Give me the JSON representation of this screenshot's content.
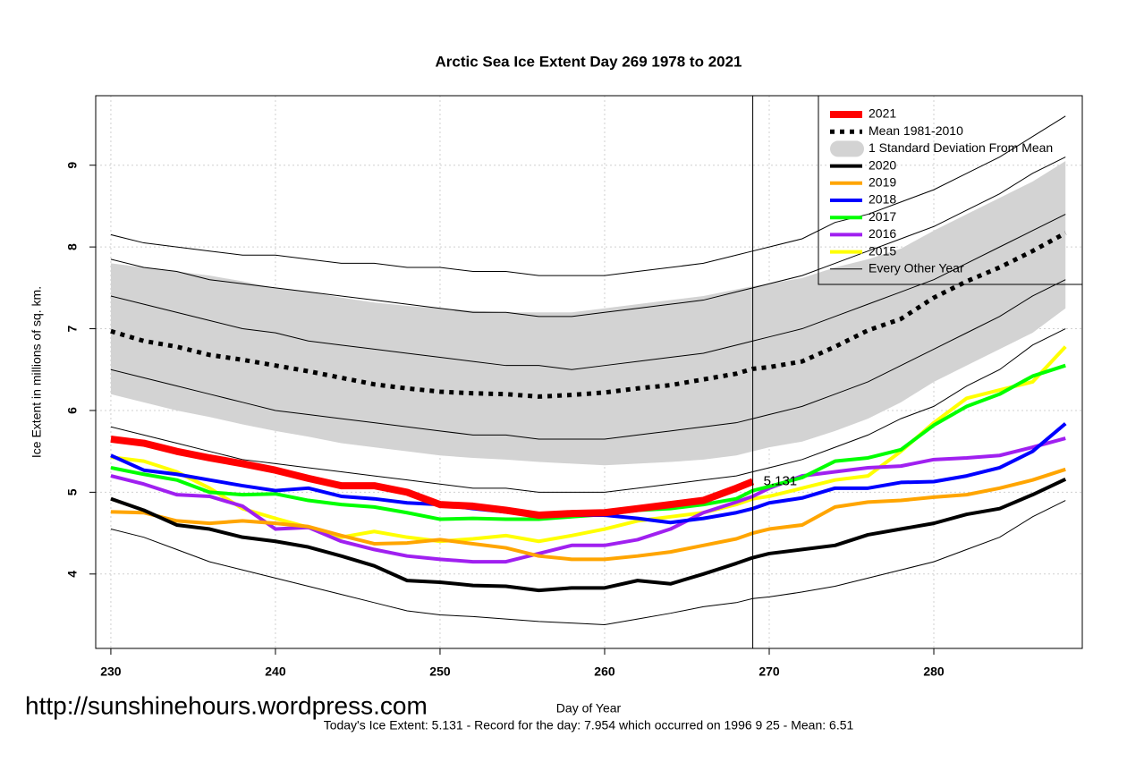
{
  "chart_data": {
    "type": "line",
    "title": "Arctic Sea Ice Extent Day 269 1978 to 2021",
    "x_label": "Day of Year",
    "y_label": "Ice Extent in millions of sq. km.",
    "footer": "Today's Ice Extent: 5.131  - Record for the day: 7.954 which occurred on 1996 9 25  - Mean: 6.51",
    "watermark": "http://sunshinehours.wordpress.com",
    "xlim": [
      229.08,
      289.02
    ],
    "ylim": [
      3.09,
      9.85
    ],
    "xticks": [
      230,
      240,
      250,
      260,
      270,
      280
    ],
    "yticks": [
      4,
      5,
      6,
      7,
      8,
      9
    ],
    "grid": true,
    "legend_position": "top-right",
    "marker_x": 269,
    "x": [
      230,
      232,
      234,
      236,
      238,
      240,
      242,
      244,
      246,
      248,
      250,
      252,
      254,
      256,
      258,
      260,
      262,
      264,
      266,
      268,
      269,
      270,
      272,
      274,
      276,
      278,
      280,
      282,
      284,
      286,
      288
    ],
    "band": {
      "name": "1 Standard Deviation From Mean",
      "color": "#d3d3d3",
      "upper": [
        7.8,
        7.75,
        7.7,
        7.65,
        7.58,
        7.5,
        7.45,
        7.38,
        7.32,
        7.28,
        7.25,
        7.22,
        7.2,
        7.2,
        7.2,
        7.25,
        7.3,
        7.35,
        7.4,
        7.48,
        7.52,
        7.55,
        7.62,
        7.75,
        7.85,
        7.98,
        8.2,
        8.4,
        8.6,
        8.8,
        9.05
      ],
      "lower": [
        6.2,
        6.1,
        6.0,
        5.92,
        5.83,
        5.75,
        5.68,
        5.6,
        5.55,
        5.5,
        5.45,
        5.42,
        5.4,
        5.37,
        5.35,
        5.33,
        5.35,
        5.37,
        5.4,
        5.45,
        5.5,
        5.55,
        5.62,
        5.75,
        5.9,
        6.1,
        6.35,
        6.55,
        6.75,
        6.95,
        7.25
      ]
    },
    "other_years": {
      "name": "Every Other Year",
      "color": "#000000",
      "lines": [
        [
          8.15,
          8.05,
          8.0,
          7.95,
          7.9,
          7.9,
          7.85,
          7.8,
          7.8,
          7.75,
          7.75,
          7.7,
          7.7,
          7.65,
          7.65,
          7.65,
          7.7,
          7.75,
          7.8,
          7.9,
          7.95,
          8.0,
          8.1,
          8.3,
          8.4,
          8.55,
          8.7,
          8.9,
          9.1,
          9.35,
          9.6
        ],
        [
          7.85,
          7.75,
          7.7,
          7.6,
          7.55,
          7.5,
          7.45,
          7.4,
          7.35,
          7.3,
          7.25,
          7.2,
          7.2,
          7.15,
          7.15,
          7.2,
          7.25,
          7.3,
          7.35,
          7.45,
          7.5,
          7.55,
          7.65,
          7.8,
          7.95,
          8.1,
          8.25,
          8.45,
          8.65,
          8.9,
          9.1
        ],
        [
          7.4,
          7.3,
          7.2,
          7.1,
          7.0,
          6.95,
          6.85,
          6.8,
          6.75,
          6.7,
          6.65,
          6.6,
          6.55,
          6.55,
          6.5,
          6.55,
          6.6,
          6.65,
          6.7,
          6.8,
          6.85,
          6.9,
          7.0,
          7.15,
          7.3,
          7.45,
          7.6,
          7.8,
          8.0,
          8.2,
          8.4
        ],
        [
          6.5,
          6.4,
          6.3,
          6.2,
          6.1,
          6.0,
          5.95,
          5.9,
          5.85,
          5.8,
          5.75,
          5.7,
          5.7,
          5.65,
          5.65,
          5.65,
          5.7,
          5.75,
          5.8,
          5.85,
          5.9,
          5.95,
          6.05,
          6.2,
          6.35,
          6.55,
          6.75,
          6.95,
          7.15,
          7.4,
          7.6
        ],
        [
          5.8,
          5.7,
          5.6,
          5.5,
          5.4,
          5.35,
          5.3,
          5.25,
          5.2,
          5.15,
          5.1,
          5.05,
          5.05,
          5.0,
          5.0,
          5.0,
          5.05,
          5.1,
          5.15,
          5.2,
          5.25,
          5.3,
          5.4,
          5.55,
          5.7,
          5.9,
          6.05,
          6.3,
          6.5,
          6.8,
          7.0
        ],
        [
          4.55,
          4.45,
          4.3,
          4.15,
          4.05,
          3.95,
          3.85,
          3.75,
          3.65,
          3.55,
          3.5,
          3.48,
          3.45,
          3.42,
          3.4,
          3.38,
          3.45,
          3.52,
          3.6,
          3.65,
          3.7,
          3.72,
          3.78,
          3.85,
          3.95,
          4.05,
          4.15,
          4.3,
          4.45,
          4.7,
          4.9
        ]
      ]
    },
    "series": [
      {
        "name": "2021",
        "color": "#ff0000",
        "values": [
          5.65,
          5.6,
          5.5,
          5.42,
          5.35,
          5.27,
          5.17,
          5.08,
          5.08,
          5.0,
          4.85,
          4.83,
          4.78,
          4.72,
          4.74,
          4.75,
          4.8,
          4.85,
          4.9,
          5.05,
          5.131,
          null,
          null,
          null,
          null,
          null,
          null,
          null,
          null,
          null,
          null
        ]
      },
      {
        "name": "Mean 1981-2010",
        "color": "#000000",
        "values": [
          6.97,
          6.85,
          6.78,
          6.68,
          6.62,
          6.55,
          6.48,
          6.4,
          6.32,
          6.27,
          6.23,
          6.21,
          6.2,
          6.17,
          6.19,
          6.22,
          6.27,
          6.31,
          6.38,
          6.45,
          6.51,
          6.53,
          6.6,
          6.78,
          6.98,
          7.12,
          7.38,
          7.58,
          7.75,
          7.95,
          8.17
        ]
      },
      {
        "name": "2020",
        "color": "#000000",
        "values": [
          4.92,
          4.78,
          4.6,
          4.55,
          4.45,
          4.4,
          4.33,
          4.22,
          4.1,
          3.92,
          3.9,
          3.86,
          3.85,
          3.8,
          3.83,
          3.83,
          3.92,
          3.88,
          4.0,
          4.13,
          4.2,
          4.25,
          4.3,
          4.35,
          4.48,
          4.55,
          4.62,
          4.73,
          4.8,
          4.97,
          5.16
        ]
      },
      {
        "name": "2019",
        "color": "#ffa500",
        "values": [
          4.76,
          4.75,
          4.65,
          4.62,
          4.65,
          4.62,
          4.58,
          4.47,
          4.37,
          4.38,
          4.42,
          4.37,
          4.32,
          4.22,
          4.18,
          4.18,
          4.22,
          4.27,
          4.35,
          4.43,
          4.5,
          4.55,
          4.6,
          4.82,
          4.88,
          4.9,
          4.94,
          4.97,
          5.05,
          5.15,
          5.28
        ]
      },
      {
        "name": "2018",
        "color": "#0000ff",
        "values": [
          5.45,
          5.27,
          5.22,
          5.15,
          5.08,
          5.02,
          5.05,
          4.95,
          4.92,
          4.87,
          4.85,
          4.8,
          4.76,
          4.72,
          4.72,
          4.72,
          4.68,
          4.63,
          4.68,
          4.75,
          4.8,
          4.87,
          4.93,
          5.05,
          5.05,
          5.12,
          5.13,
          5.2,
          5.3,
          5.5,
          5.84
        ]
      },
      {
        "name": "2017",
        "color": "#00ff00",
        "values": [
          5.3,
          5.22,
          5.15,
          5.0,
          4.97,
          4.98,
          4.9,
          4.85,
          4.82,
          4.75,
          4.67,
          4.68,
          4.67,
          4.67,
          4.7,
          4.73,
          4.78,
          4.8,
          4.85,
          4.92,
          5.02,
          5.07,
          5.18,
          5.38,
          5.42,
          5.52,
          5.82,
          6.05,
          6.2,
          6.42,
          6.55
        ]
      },
      {
        "name": "2016",
        "color": "#a020f0",
        "values": [
          5.2,
          5.1,
          4.97,
          4.95,
          4.83,
          4.55,
          4.57,
          4.4,
          4.3,
          4.22,
          4.18,
          4.15,
          4.15,
          4.25,
          4.35,
          4.35,
          4.42,
          4.55,
          4.75,
          4.88,
          4.95,
          5.05,
          5.2,
          5.25,
          5.3,
          5.32,
          5.4,
          5.42,
          5.45,
          5.55,
          5.66
        ]
      },
      {
        "name": "2015",
        "color": "#ffff00",
        "values": [
          5.43,
          5.38,
          5.25,
          5.05,
          4.8,
          4.68,
          4.57,
          4.45,
          4.52,
          4.45,
          4.4,
          4.43,
          4.47,
          4.4,
          4.47,
          4.55,
          4.65,
          4.7,
          4.75,
          4.85,
          4.92,
          4.95,
          5.05,
          5.15,
          5.2,
          5.5,
          5.85,
          6.15,
          6.25,
          6.35,
          6.78
        ]
      }
    ]
  }
}
